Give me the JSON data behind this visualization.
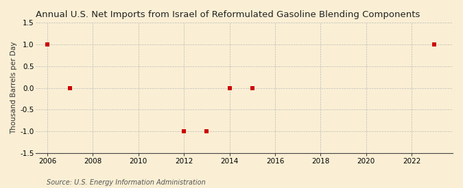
{
  "title": "Annual U.S. Net Imports from Israel of Reformulated Gasoline Blending Components",
  "ylabel": "Thousand Barrels per Day",
  "source_text": "Source: U.S. Energy Information Administration",
  "background_color": "#faefd4",
  "plot_bg_color": "#faefd4",
  "data_x": [
    2006,
    2007,
    2012,
    2013,
    2014,
    2015,
    2023
  ],
  "data_y": [
    1.0,
    0.0,
    -1.0,
    -1.0,
    0.0,
    0.0,
    1.0
  ],
  "marker_color": "#cc0000",
  "marker_size": 4,
  "xlim": [
    2005.5,
    2023.8
  ],
  "ylim": [
    -1.5,
    1.5
  ],
  "xticks": [
    2006,
    2008,
    2010,
    2012,
    2014,
    2016,
    2018,
    2020,
    2022
  ],
  "yticks": [
    -1.5,
    -1.0,
    -0.5,
    0.0,
    0.5,
    1.0,
    1.5
  ],
  "grid_color": "#bbbbbb",
  "title_fontsize": 9.5,
  "label_fontsize": 7.5,
  "tick_fontsize": 7.5,
  "source_fontsize": 7
}
